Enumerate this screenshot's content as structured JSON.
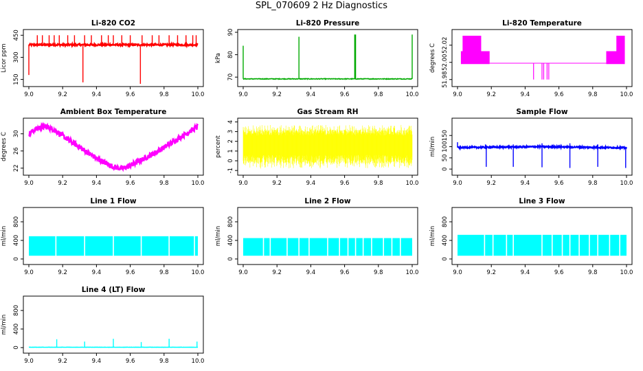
{
  "page": {
    "title": "SPL_070609  2 Hz Diagnostics"
  },
  "chart_data": [
    {
      "type": "line",
      "title": "Li-820 CO2",
      "xlabel": "",
      "ylabel": "Licor ppm",
      "xlim": [
        9.0,
        10.0
      ],
      "ylim": [
        120,
        470
      ],
      "xticks": [
        9.0,
        9.2,
        9.4,
        9.6,
        9.8,
        10.0
      ],
      "xticklabels": [
        "9.0",
        "9.2",
        "9.4",
        "9.6",
        "9.8",
        "10.0"
      ],
      "yticks": [
        150,
        300,
        450
      ],
      "yticklabels": [
        "150",
        "300",
        "450"
      ],
      "color": "#ff0000",
      "series": [
        {
          "baseline": 385,
          "noise": 6,
          "spikes": [
            [
              9.0,
              180
            ],
            [
              9.05,
              450
            ],
            [
              9.08,
              450
            ],
            [
              9.12,
              450
            ],
            [
              9.15,
              450
            ],
            [
              9.18,
              450
            ],
            [
              9.23,
              450
            ],
            [
              9.27,
              450
            ],
            [
              9.32,
              130
            ],
            [
              9.33,
              450
            ],
            [
              9.37,
              450
            ],
            [
              9.43,
              450
            ],
            [
              9.47,
              450
            ],
            [
              9.5,
              450
            ],
            [
              9.55,
              450
            ],
            [
              9.6,
              450
            ],
            [
              9.66,
              120
            ],
            [
              9.67,
              450
            ],
            [
              9.73,
              450
            ],
            [
              9.77,
              450
            ],
            [
              9.83,
              450
            ],
            [
              9.88,
              450
            ],
            [
              9.93,
              450
            ],
            [
              9.97,
              450
            ],
            [
              9.99,
              450
            ]
          ]
        }
      ]
    },
    {
      "type": "line",
      "title": "Li-820 Pressure",
      "xlabel": "",
      "ylabel": "kPa",
      "xlim": [
        9.0,
        10.0
      ],
      "ylim": [
        67,
        90
      ],
      "xticks": [
        9.0,
        9.2,
        9.4,
        9.6,
        9.8,
        10.0
      ],
      "xticklabels": [
        "9.0",
        "9.2",
        "9.4",
        "9.6",
        "9.8",
        "10.0"
      ],
      "yticks": [
        70,
        80,
        90
      ],
      "yticklabels": [
        "70",
        "80",
        "90"
      ],
      "color": "#00aa00",
      "series": [
        {
          "baseline": 69.2,
          "noise": 0.15,
          "spikes": [
            [
              9.0,
              84
            ],
            [
              9.33,
              88
            ],
            [
              9.66,
              89
            ],
            [
              9.665,
              89
            ],
            [
              10.0,
              89
            ]
          ]
        }
      ]
    },
    {
      "type": "area",
      "title": "Li-820 Temperature",
      "xlabel": "",
      "ylabel": "degrees C",
      "xlim": [
        9.0,
        10.0
      ],
      "ylim": [
        51.975,
        52.035
      ],
      "xticks": [
        9.0,
        9.2,
        9.4,
        9.6,
        9.8,
        10.0
      ],
      "xticklabels": [
        "9.0",
        "9.2",
        "9.4",
        "9.6",
        "9.8",
        "10.0"
      ],
      "yticks": [
        51.98,
        52.0,
        52.02
      ],
      "yticklabels": [
        "51.98",
        "52.00",
        "52.02"
      ],
      "color": "#ff00ff",
      "series": [
        {
          "baseline": 51.999,
          "bands": [
            [
              9.02,
              9.19,
              51.998,
              52.013
            ],
            [
              9.03,
              9.14,
              52.013,
              52.031
            ],
            [
              9.88,
              9.99,
              51.998,
              52.013
            ],
            [
              9.94,
              9.99,
              52.013,
              52.031
            ]
          ],
          "dips": [
            [
              9.45,
              51.98
            ],
            [
              9.5,
              51.98
            ],
            [
              9.51,
              51.98
            ],
            [
              9.53,
              51.98
            ],
            [
              9.54,
              51.98
            ]
          ]
        }
      ]
    },
    {
      "type": "line",
      "title": "Ambient Box Temperature",
      "xlabel": "",
      "ylabel": "degrees C",
      "xlim": [
        9.0,
        10.0
      ],
      "ylim": [
        21,
        33
      ],
      "xticks": [
        9.0,
        9.2,
        9.4,
        9.6,
        9.8,
        10.0
      ],
      "xticklabels": [
        "9.0",
        "9.2",
        "9.4",
        "9.6",
        "9.8",
        "10.0"
      ],
      "yticks": [
        22,
        26,
        30
      ],
      "yticklabels": [
        "22",
        "26",
        "30"
      ],
      "color": "#ff00ff",
      "series": [
        {
          "x": [
            9.0,
            9.05,
            9.1,
            9.15,
            9.2,
            9.3,
            9.4,
            9.5,
            9.55,
            9.6,
            9.7,
            9.8,
            9.9,
            10.0
          ],
          "y": [
            30.0,
            31.3,
            31.7,
            31.0,
            29.5,
            26.9,
            24.3,
            22.3,
            21.9,
            22.6,
            24.6,
            26.8,
            29.3,
            31.7
          ],
          "noise": 0.6
        }
      ]
    },
    {
      "type": "line",
      "title": "Gas Stream RH",
      "xlabel": "",
      "ylabel": "percent",
      "xlim": [
        9.0,
        10.0
      ],
      "ylim": [
        -1.2,
        4.1
      ],
      "xticks": [
        9.0,
        9.2,
        9.4,
        9.6,
        9.8,
        10.0
      ],
      "xticklabels": [
        "9.0",
        "9.2",
        "9.4",
        "9.6",
        "9.8",
        "10.0"
      ],
      "yticks": [
        -1,
        0,
        1,
        2,
        3,
        4
      ],
      "yticklabels": [
        "-1",
        "0",
        "1",
        "2",
        "3",
        "4"
      ],
      "color": "#ffff00",
      "series": [
        {
          "band_low": -0.8,
          "band_high": 3.7,
          "dense_low": 0.6,
          "dense_high": 2.6
        }
      ]
    },
    {
      "type": "line",
      "title": "Sample Flow",
      "xlabel": "",
      "ylabel": "ml/min",
      "xlim": [
        9.0,
        10.0
      ],
      "ylim": [
        -15,
        215
      ],
      "xticks": [
        9.0,
        9.2,
        9.4,
        9.6,
        9.8,
        10.0
      ],
      "xticklabels": [
        "9.0",
        "9.2",
        "9.4",
        "9.6",
        "9.8",
        "10.0"
      ],
      "yticks": [
        0,
        50,
        100,
        150
      ],
      "yticklabels": [
        "0",
        "50",
        "100",
        "150"
      ],
      "color": "#0000ff",
      "series": [
        {
          "x": [
            9.0,
            9.5,
            10.0
          ],
          "y": [
            96,
            100,
            95
          ],
          "noise": 3,
          "spikes": [
            [
              9.0,
              120
            ],
            [
              9.17,
              10
            ],
            [
              9.165,
              110
            ],
            [
              9.33,
              10
            ],
            [
              9.33,
              110
            ],
            [
              9.5,
              8
            ],
            [
              9.5,
              115
            ],
            [
              9.665,
              5
            ],
            [
              9.665,
              115
            ],
            [
              9.83,
              10
            ],
            [
              9.83,
              110
            ],
            [
              9.995,
              5
            ]
          ]
        }
      ]
    },
    {
      "type": "area",
      "title": "Line 1 Flow",
      "xlabel": "",
      "ylabel": "ml/min",
      "xlim": [
        9.0,
        10.0
      ],
      "ylim": [
        -60,
        1050
      ],
      "xticks": [
        9.0,
        9.2,
        9.4,
        9.6,
        9.8,
        10.0
      ],
      "xticklabels": [
        "9.0",
        "9.2",
        "9.4",
        "9.6",
        "9.8",
        "10.0"
      ],
      "yticks": [
        0,
        400,
        800
      ],
      "yticklabels": [
        "0",
        "400",
        "800"
      ],
      "color": "#00ffff",
      "series": [
        {
          "low": 70,
          "high": 490,
          "gaps": [
            9.16,
            9.33,
            9.5,
            9.665,
            9.83,
            9.98
          ]
        }
      ]
    },
    {
      "type": "area",
      "title": "Line 2 Flow",
      "xlabel": "",
      "ylabel": "ml/min",
      "xlim": [
        9.0,
        10.0
      ],
      "ylim": [
        -60,
        1050
      ],
      "xticks": [
        9.0,
        9.2,
        9.4,
        9.6,
        9.8,
        10.0
      ],
      "xticklabels": [
        "9.0",
        "9.2",
        "9.4",
        "9.6",
        "9.8",
        "10.0"
      ],
      "yticks": [
        0,
        400,
        800
      ],
      "yticklabels": [
        "0",
        "400",
        "800"
      ],
      "color": "#00ffff",
      "series": [
        {
          "low": 70,
          "high": 450,
          "gaps": [
            9.12,
            9.16,
            9.26,
            9.33,
            9.39,
            9.5,
            9.57,
            9.62,
            9.665,
            9.71,
            9.76,
            9.83,
            9.88,
            9.93
          ]
        }
      ]
    },
    {
      "type": "area",
      "title": "Line 3 Flow",
      "xlabel": "",
      "ylabel": "ml/min",
      "xlim": [
        9.0,
        10.0
      ],
      "ylim": [
        -60,
        1050
      ],
      "xticks": [
        9.0,
        9.2,
        9.4,
        9.6,
        9.8,
        10.0
      ],
      "xticklabels": [
        "9.0",
        "9.2",
        "9.4",
        "9.6",
        "9.8",
        "10.0"
      ],
      "yticks": [
        0,
        400,
        800
      ],
      "yticklabels": [
        "0",
        "400",
        "800"
      ],
      "color": "#00ffff",
      "series": [
        {
          "low": 70,
          "high": 520,
          "gaps": [
            9.16,
            9.21,
            9.29,
            9.33,
            9.5,
            9.56,
            9.62,
            9.665,
            9.72,
            9.78,
            9.83,
            9.9,
            9.96
          ]
        }
      ]
    },
    {
      "type": "line",
      "title": "Line 4 (LT) Flow",
      "xlabel": "",
      "ylabel": "ml/min",
      "xlim": [
        9.0,
        10.0
      ],
      "ylim": [
        -60,
        1050
      ],
      "xticks": [
        9.0,
        9.2,
        9.4,
        9.6,
        9.8,
        10.0
      ],
      "xticklabels": [
        "9.0",
        "9.2",
        "9.4",
        "9.6",
        "9.8",
        "10.0"
      ],
      "yticks": [
        0,
        400,
        800
      ],
      "yticklabels": [
        "0",
        "400",
        "800"
      ],
      "color": "#00ffff",
      "series": [
        {
          "baseline": 8,
          "noise": 2,
          "spikes": [
            [
              9.165,
              180
            ],
            [
              9.33,
              130
            ],
            [
              9.5,
              190
            ],
            [
              9.665,
              120
            ],
            [
              9.83,
              190
            ],
            [
              9.995,
              130
            ]
          ]
        }
      ]
    }
  ]
}
